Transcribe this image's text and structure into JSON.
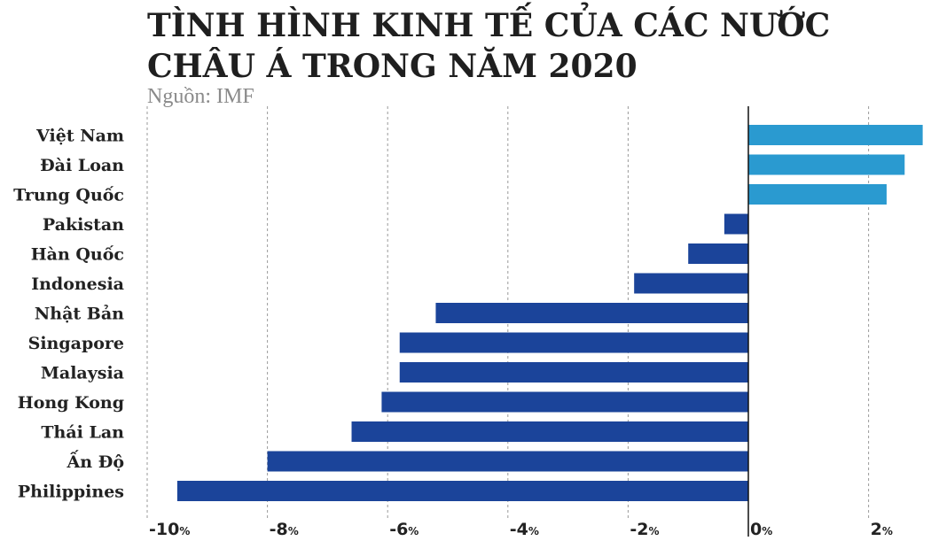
{
  "chart_data": {
    "type": "bar",
    "orientation": "horizontal",
    "title": "TÌNH HÌNH KINH TẾ CỦA CÁC NƯỚC CHÂU Á TRONG NĂM 2020",
    "subtitle": "Nguồn: IMF",
    "categories": [
      "Việt Nam",
      "Đài Loan",
      "Trung Quốc",
      "Pakistan",
      "Hàn Quốc",
      "Indonesia",
      "Nhật Bản",
      "Singapore",
      "Malaysia",
      "Hong Kong",
      "Thái Lan",
      "Ấn Độ",
      "Philippines"
    ],
    "values": [
      2.9,
      2.6,
      2.3,
      -0.4,
      -1.0,
      -1.9,
      -5.2,
      -5.8,
      -5.8,
      -6.1,
      -6.6,
      -8.0,
      -9.5
    ],
    "xlim": [
      -10,
      3
    ],
    "xticks": [
      -10,
      -8,
      -6,
      -4,
      -2,
      0,
      2
    ],
    "tick_labels": [
      "-10",
      "-8",
      "-6",
      "-4",
      "-2",
      "0",
      "2"
    ],
    "tick_unit": "%",
    "grid": "vertical-dashed",
    "colors": {
      "positive": "#2a9ad0",
      "negative": "#1b449a",
      "zero_line": "#111111",
      "grid": "#9a9a9a"
    }
  }
}
